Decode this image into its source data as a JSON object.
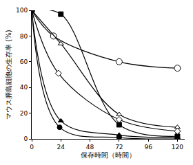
{
  "chart_data": {
    "type": "line",
    "x_label": "保存時間（時間）",
    "y_label": "マウス膵島細胞の生存率 (%)",
    "xlim": [
      0,
      126
    ],
    "xticks": [
      0,
      24,
      48,
      72,
      96,
      120
    ],
    "ylim": [
      0,
      100
    ],
    "yticks": [
      0,
      20,
      40,
      60,
      80,
      100
    ],
    "grid": false,
    "series": [
      {
        "color": "#000000",
        "marker": "circle-open",
        "line_style": "solid",
        "x": [
          0,
          18,
          72,
          120
        ],
        "values": [
          100,
          80,
          60,
          55
        ]
      },
      {
        "color": "#000000",
        "marker": "square",
        "line_style": "solid",
        "x": [
          0,
          24,
          72,
          120
        ],
        "values": [
          100,
          97,
          11,
          2
        ]
      },
      {
        "color": "#000000",
        "marker": "triangle-up-open",
        "line_style": "solid",
        "x": [
          0,
          24,
          72,
          120
        ],
        "values": [
          100,
          74,
          19,
          9
        ]
      },
      {
        "color": "#000000",
        "marker": "diamond-open",
        "line_style": "solid",
        "x": [
          0,
          22,
          72,
          120
        ],
        "values": [
          100,
          51,
          15,
          6
        ]
      },
      {
        "color": "#000000",
        "marker": "triangle-up",
        "line_style": "solid",
        "x": [
          0,
          24,
          72,
          120
        ],
        "values": [
          100,
          14,
          3,
          1
        ]
      },
      {
        "color": "#000000",
        "marker": "circle",
        "line_style": "solid",
        "x": [
          0,
          23,
          72,
          120
        ],
        "values": [
          100,
          9,
          1,
          0
        ]
      }
    ]
  }
}
